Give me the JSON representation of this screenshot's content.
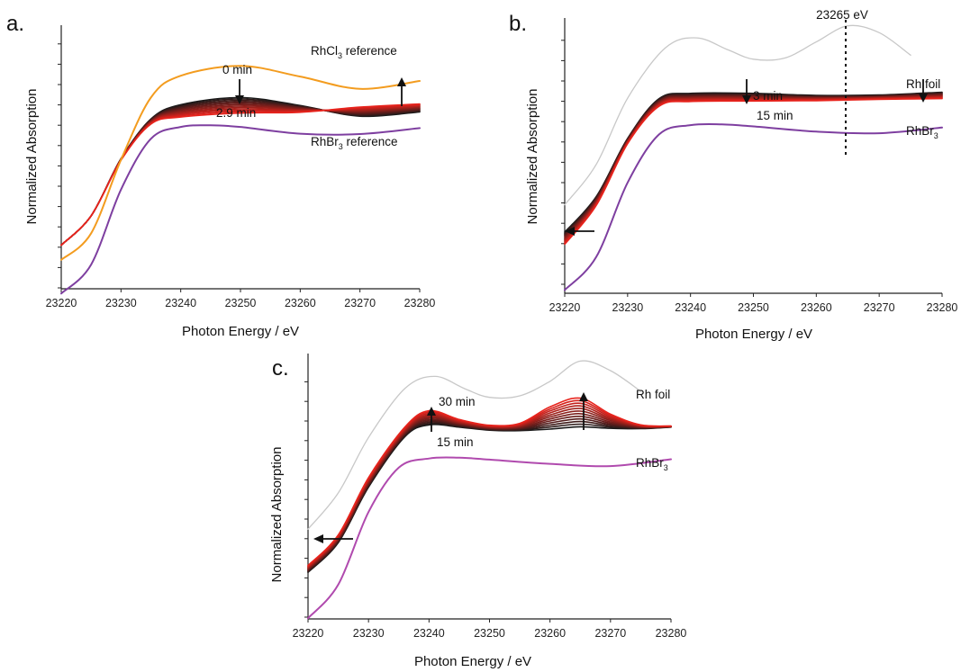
{
  "colors": {
    "rhcl3": "#f39c1f",
    "rhbr3": "#7e3fa0",
    "rhbr3_c": "#b04aae",
    "rh_foil": "#c8c8c8",
    "series_start": "#1a1a1a",
    "series_end": "#e8231c"
  },
  "chart_data": [
    {
      "panel": "a.",
      "type": "line",
      "xlabel": "Photon Energy / eV",
      "ylabel": "Normalized Absorption",
      "xlim": [
        23220,
        23280
      ],
      "xticks": [
        "23220",
        "23230",
        "23240",
        "23250",
        "23260",
        "23270",
        "23280"
      ],
      "y_tick_labels": "none",
      "annotations": {
        "start_time": "0 min",
        "end_time": "2.9 min"
      },
      "references": [
        {
          "name_main": "RhCl",
          "name_sub": "3",
          "name_tail": " reference",
          "color_key": "rhcl3",
          "x": [
            23220,
            23225,
            23230,
            23235,
            23240,
            23250,
            23260,
            23270,
            23280
          ],
          "y": [
            0.73,
            1.4,
            3.25,
            4.82,
            5.37,
            5.62,
            5.35,
            5.04,
            5.24
          ]
        },
        {
          "name_main": "RhBr",
          "name_sub": "3",
          "name_tail": " reference",
          "color_key": "rhbr3",
          "x": [
            23220,
            23225,
            23230,
            23235,
            23240,
            23245,
            23250,
            23260,
            23270,
            23280
          ],
          "y": [
            -0.12,
            0.61,
            2.5,
            3.78,
            4.08,
            4.12,
            4.08,
            3.91,
            3.9,
            4.05
          ]
        }
      ],
      "series_group": {
        "count": 12,
        "label": "0 min to 2.9 min",
        "x": [
          23220,
          23225,
          23230,
          23235,
          23240,
          23250,
          23260,
          23270,
          23280
        ],
        "y_first": [
          1.1,
          1.84,
          3.28,
          4.28,
          4.64,
          4.82,
          4.62,
          4.35,
          4.46
        ],
        "y_last": [
          1.1,
          1.84,
          3.24,
          4.15,
          4.33,
          4.43,
          4.45,
          4.58,
          4.66
        ]
      }
    },
    {
      "panel": "b.",
      "type": "line",
      "xlabel": "Photon Energy / eV",
      "ylabel": "Normalized Absorption",
      "xlim": [
        23220,
        23280
      ],
      "xticks": [
        "23220",
        "23230",
        "23240",
        "23250",
        "23260",
        "23270",
        "23280"
      ],
      "y_tick_labels": "none",
      "annotations": {
        "start_time": "3 min",
        "end_time": "15 min",
        "vline_label": "23265 eV",
        "vline_x": 23265
      },
      "references": [
        {
          "name_main": "Rh foil",
          "name_sub": "",
          "name_tail": "",
          "color_key": "rh_foil",
          "x": [
            23220,
            23225,
            23230,
            23236,
            23241,
            23246,
            23250,
            23255,
            23260,
            23265,
            23270,
            23275
          ],
          "y": [
            2.2,
            3.2,
            4.85,
            6.1,
            6.35,
            6.05,
            5.82,
            5.85,
            6.25,
            6.65,
            6.48,
            5.92
          ]
        },
        {
          "name_main": "RhBr",
          "name_sub": "3",
          "name_tail": "",
          "color_key": "rhbr3",
          "x": [
            23220,
            23225,
            23230,
            23235,
            23240,
            23245,
            23250,
            23260,
            23270,
            23280
          ],
          "y": [
            0.08,
            0.9,
            2.75,
            3.95,
            4.18,
            4.2,
            4.15,
            4.02,
            3.98,
            4.12
          ]
        }
      ],
      "series_group": {
        "count": 12,
        "label": "3 min to 15 min",
        "x": [
          23220,
          23225,
          23230,
          23235,
          23240,
          23250,
          23260,
          23270,
          23280
        ],
        "y_first": [
          1.52,
          2.4,
          3.85,
          4.84,
          4.97,
          4.97,
          4.92,
          4.93,
          5.0
        ],
        "y_last": [
          1.22,
          2.18,
          3.72,
          4.65,
          4.77,
          4.78,
          4.79,
          4.82,
          4.84
        ]
      }
    },
    {
      "panel": "c.",
      "type": "line",
      "xlabel": "Photon Energy / eV",
      "ylabel": "Normalized Absorption",
      "xlim": [
        23220,
        23280
      ],
      "xticks": [
        "23220",
        "23230",
        "23240",
        "23250",
        "23260",
        "23270",
        "23280"
      ],
      "y_tick_labels": "none",
      "annotations": {
        "start_time": "15 min",
        "end_time": "30 min"
      },
      "references": [
        {
          "name_main": "Rh foil",
          "name_sub": "",
          "name_tail": "",
          "color_key": "rh_foil",
          "x": [
            23220,
            23225,
            23230,
            23236,
            23241,
            23246,
            23250,
            23255,
            23260,
            23265,
            23270,
            23275
          ],
          "y": [
            2.35,
            3.3,
            4.75,
            6.03,
            6.35,
            6.02,
            5.8,
            5.84,
            6.22,
            6.75,
            6.5,
            5.96
          ]
        },
        {
          "name_main": "RhBr",
          "name_sub": "3",
          "name_tail": "",
          "color_key": "rhbr3_c",
          "x": [
            23220,
            23225,
            23230,
            23235,
            23240,
            23245,
            23250,
            23260,
            23270,
            23280
          ],
          "y": [
            0.02,
            0.9,
            2.8,
            3.96,
            4.2,
            4.22,
            4.17,
            4.06,
            4.0,
            4.18
          ]
        }
      ],
      "series_group": {
        "count": 12,
        "label": "15 min to 30 min",
        "x": [
          23220,
          23225,
          23230,
          23236,
          23240,
          23245,
          23250,
          23255,
          23260,
          23265,
          23270,
          23275,
          23280
        ],
        "y_first": [
          1.22,
          2.0,
          3.45,
          4.77,
          5.08,
          5.02,
          4.94,
          4.93,
          4.97,
          5.03,
          4.99,
          4.98,
          5.02
        ],
        "y_last": [
          1.4,
          2.2,
          3.7,
          5.02,
          5.45,
          5.22,
          5.07,
          5.12,
          5.55,
          5.78,
          5.36,
          5.08,
          5.05
        ]
      }
    }
  ]
}
